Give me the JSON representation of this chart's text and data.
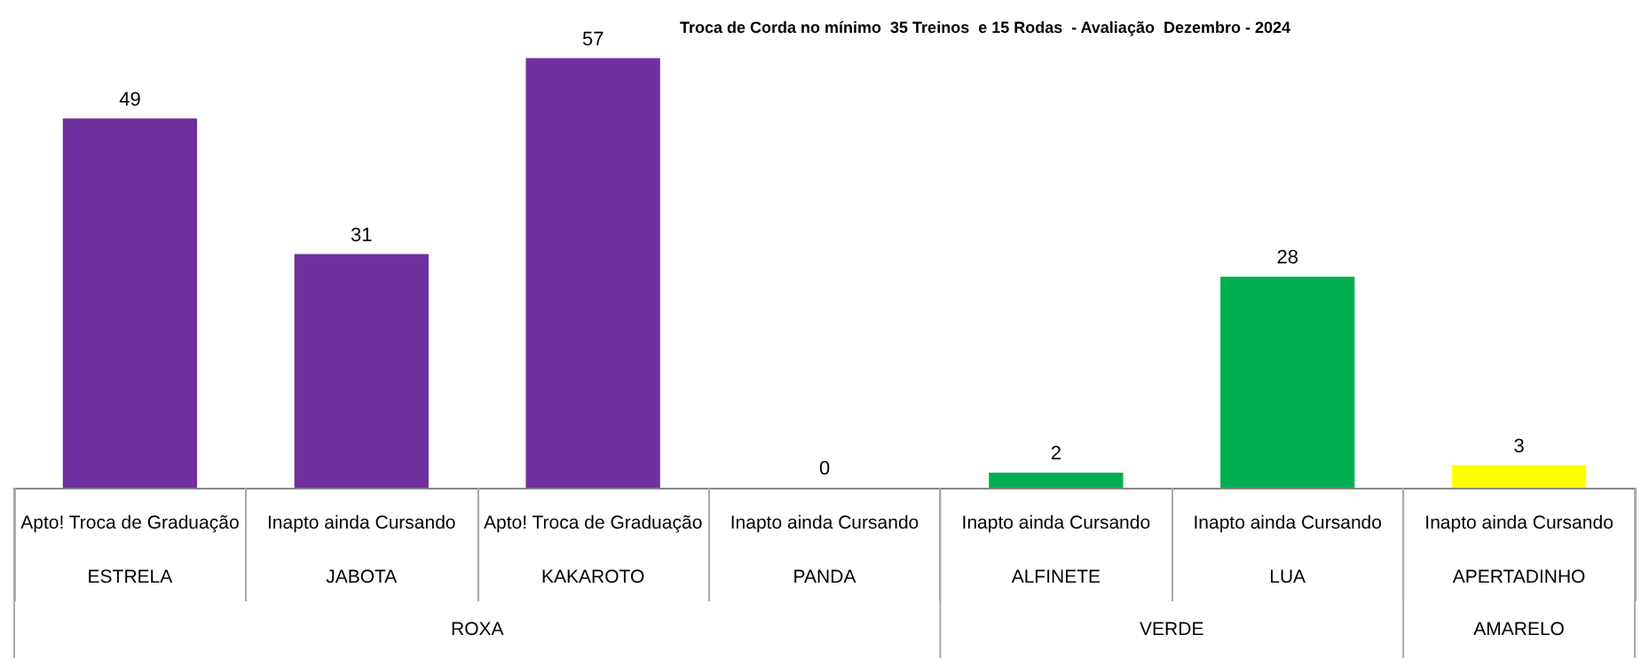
{
  "chart_data": {
    "type": "bar",
    "title": "Troca de Corda no mínimo  35 Treinos  e 15 Rodas  - Avaliação  Dezembro - 2024",
    "categories": [
      "ESTRELA",
      "JABOTA",
      "KAKAROTO",
      "PANDA",
      "ALFINETE",
      "LUA",
      "APERTADINHO"
    ],
    "values": [
      49,
      31,
      57,
      0,
      2,
      28,
      3
    ],
    "colors": [
      "#7030a0",
      "#7030a0",
      "#7030a0",
      "#7030a0",
      "#00b050",
      "#00b050",
      "#ffff00"
    ],
    "annotations": [
      "Apto! Troca de Graduação",
      "Inapto ainda Cursando",
      "Apto! Troca de Graduação",
      "Inapto ainda Cursando",
      "Inapto ainda Cursando",
      "Inapto ainda Cursando",
      "Inapto ainda Cursando",
      "ROXA",
      "VERDE",
      "AMARELO"
    ],
    "data_labels": true,
    "tick_labels": "x",
    "grid": false
  }
}
